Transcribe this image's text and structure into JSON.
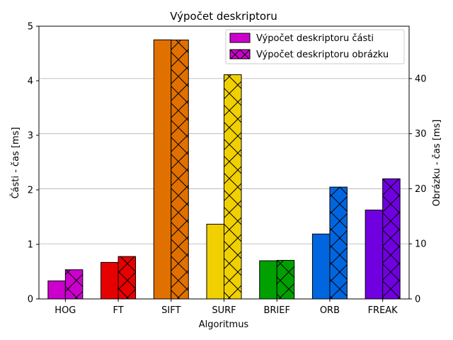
{
  "chart_data": {
    "type": "bar",
    "title": "Výpočet deskriptoru",
    "xlabel": "Algoritmus",
    "ylabel_left": "Části - čas [ms]",
    "ylabel_right": "Obrázku - čas [ms]",
    "categories": [
      "HOG",
      "FT",
      "SIFT",
      "SURF",
      "BRIEF",
      "ORB",
      "FREAK"
    ],
    "colors": [
      "#cc00cc",
      "#e60000",
      "#e07000",
      "#f0d000",
      "#00a000",
      "#0066e0",
      "#7000e0"
    ],
    "series": [
      {
        "name": "Výpočet deskriptoru části",
        "axis": "left",
        "hatch": "none",
        "values": [
          0.33,
          0.67,
          4.75,
          1.37,
          0.7,
          1.19,
          1.63
        ]
      },
      {
        "name": "Výpočet deskriptoru obrázku",
        "axis": "right",
        "hatch": "x",
        "values": [
          5.3,
          7.7,
          47.0,
          40.7,
          7.0,
          20.3,
          21.8
        ]
      }
    ],
    "ylim_left": [
      0,
      5
    ],
    "ylim_right": [
      0,
      49.5
    ],
    "yticks_left": [
      "0",
      "1",
      "2",
      "3",
      "4",
      "5"
    ],
    "yticks_right": [
      "0",
      "10",
      "20",
      "30",
      "40"
    ],
    "grid": "horizontal (right axis)",
    "legend_position": "top-right",
    "legend_color": "#cc00cc"
  }
}
